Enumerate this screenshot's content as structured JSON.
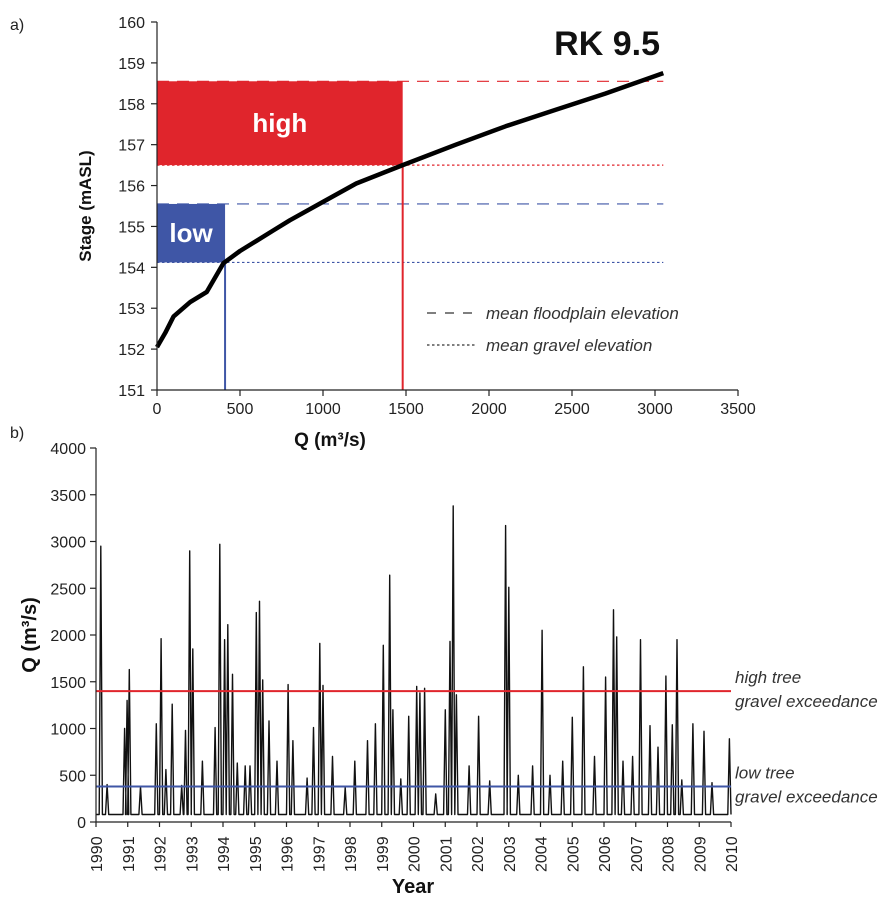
{
  "chart_data": [
    {
      "type": "line",
      "panel_label": "a)",
      "title": "RK 9.5",
      "xlabel": "Q (m³/s)",
      "ylabel": "Stage (mASL)",
      "xlim": [
        0,
        3500
      ],
      "ylim": [
        151,
        160
      ],
      "x_ticks": [
        0,
        500,
        1000,
        1500,
        2000,
        2500,
        3000,
        3500
      ],
      "y_ticks": [
        151,
        152,
        153,
        154,
        155,
        156,
        157,
        158,
        159,
        160
      ],
      "series": [
        {
          "values": [
            [
              0,
              152.05
            ],
            [
              50,
              152.4
            ],
            [
              100,
              152.8
            ],
            [
              200,
              153.15
            ],
            [
              300,
              153.4
            ],
            [
              400,
              154.1
            ],
            [
              500,
              154.4
            ],
            [
              600,
              154.65
            ],
            [
              700,
              154.9
            ],
            [
              800,
              155.15
            ],
            [
              1000,
              155.6
            ],
            [
              1200,
              156.05
            ],
            [
              1480,
              156.5
            ],
            [
              1800,
              157.0
            ],
            [
              2100,
              157.45
            ],
            [
              2400,
              157.85
            ],
            [
              2700,
              158.25
            ],
            [
              3050,
              158.75
            ]
          ]
        }
      ],
      "boxes": [
        {
          "label": "high",
          "color": "#e0252c",
          "x": [
            0,
            1480
          ],
          "y": [
            156.5,
            158.55
          ]
        },
        {
          "label": "low",
          "color": "#3f56a6",
          "x": [
            0,
            410
          ],
          "y": [
            154.12,
            155.55
          ]
        }
      ],
      "vertical_lines": [
        {
          "x": 410,
          "color": "#3f56a6"
        },
        {
          "x": 1480,
          "color": "#e0252c"
        }
      ],
      "reference_lines": [
        {
          "y": 158.55,
          "style": "dashed",
          "color": "#e0252c"
        },
        {
          "y": 156.5,
          "style": "dotted",
          "color": "#e0252c"
        },
        {
          "y": 155.55,
          "style": "dashed",
          "color": "#3f56a6"
        },
        {
          "y": 154.12,
          "style": "dotted",
          "color": "#3f56a6"
        }
      ],
      "legend": [
        {
          "label": "mean floodplain elevation",
          "style": "dashed"
        },
        {
          "label": "mean gravel elevation",
          "style": "dotted"
        }
      ],
      "legend_placement": "bottom-right",
      "grid": false
    },
    {
      "type": "line",
      "panel_label": "b)",
      "xlabel": "Year",
      "ylabel": "Q (m³/s)",
      "xlim": [
        1990,
        2010
      ],
      "ylim": [
        0,
        4000
      ],
      "y_ticks": [
        0,
        500,
        1000,
        1500,
        2000,
        2500,
        3000,
        3500,
        4000
      ],
      "x_tick_labels": [
        "1990",
        "1991",
        "1992",
        "1993",
        "1994",
        "1995",
        "1996",
        "1997",
        "1998",
        "1999",
        "2000",
        "2001",
        "2002",
        "2003",
        "2004",
        "2005",
        "2006",
        "2007",
        "2008",
        "2009",
        "2010"
      ],
      "baseflow": 80,
      "series": [
        {
          "values": [
            [
              1990.15,
              2950
            ],
            [
              1990.35,
              400
            ],
            [
              1990.9,
              1000
            ],
            [
              1990.98,
              1300
            ],
            [
              1991.05,
              1630
            ],
            [
              1991.4,
              380
            ],
            [
              1991.9,
              1050
            ],
            [
              1992.05,
              1960
            ],
            [
              1992.2,
              560
            ],
            [
              1992.4,
              1260
            ],
            [
              1992.7,
              390
            ],
            [
              1992.82,
              980
            ],
            [
              1992.95,
              2900
            ],
            [
              1993.05,
              1850
            ],
            [
              1993.35,
              650
            ],
            [
              1993.75,
              1010
            ],
            [
              1993.9,
              2970
            ],
            [
              1994.05,
              1950
            ],
            [
              1994.15,
              2110
            ],
            [
              1994.3,
              1580
            ],
            [
              1994.45,
              630
            ],
            [
              1994.7,
              600
            ],
            [
              1994.85,
              600
            ],
            [
              1995.05,
              2240
            ],
            [
              1995.15,
              2360
            ],
            [
              1995.25,
              1520
            ],
            [
              1995.45,
              1080
            ],
            [
              1995.7,
              650
            ],
            [
              1996.05,
              1470
            ],
            [
              1996.2,
              870
            ],
            [
              1996.65,
              470
            ],
            [
              1996.85,
              1010
            ],
            [
              1997.05,
              1910
            ],
            [
              1997.15,
              1460
            ],
            [
              1997.45,
              700
            ],
            [
              1997.85,
              370
            ],
            [
              1998.15,
              650
            ],
            [
              1998.55,
              870
            ],
            [
              1998.8,
              1050
            ],
            [
              1999.05,
              1890
            ],
            [
              1999.25,
              2640
            ],
            [
              1999.35,
              1200
            ],
            [
              1999.6,
              460
            ],
            [
              1999.85,
              1130
            ],
            [
              2000.1,
              1450
            ],
            [
              2000.2,
              1380
            ],
            [
              2000.35,
              1430
            ],
            [
              2000.7,
              300
            ],
            [
              2001.0,
              1200
            ],
            [
              2001.15,
              1930
            ],
            [
              2001.25,
              3380
            ],
            [
              2001.35,
              1360
            ],
            [
              2001.75,
              600
            ],
            [
              2002.05,
              1130
            ],
            [
              2002.4,
              440
            ],
            [
              2002.9,
              3170
            ],
            [
              2003.0,
              2510
            ],
            [
              2003.3,
              500
            ],
            [
              2003.75,
              600
            ],
            [
              2004.05,
              2050
            ],
            [
              2004.3,
              500
            ],
            [
              2004.7,
              650
            ],
            [
              2005.0,
              1120
            ],
            [
              2005.35,
              1660
            ],
            [
              2005.7,
              700
            ],
            [
              2006.05,
              1550
            ],
            [
              2006.3,
              2270
            ],
            [
              2006.4,
              1980
            ],
            [
              2006.6,
              650
            ],
            [
              2006.9,
              700
            ],
            [
              2007.15,
              1950
            ],
            [
              2007.45,
              1030
            ],
            [
              2007.7,
              800
            ],
            [
              2007.95,
              1560
            ],
            [
              2008.15,
              1040
            ],
            [
              2008.3,
              1950
            ],
            [
              2008.45,
              450
            ],
            [
              2008.8,
              1050
            ],
            [
              2009.15,
              970
            ],
            [
              2009.4,
              420
            ],
            [
              2009.95,
              890
            ]
          ]
        }
      ],
      "horizontal_lines": [
        {
          "y": 1400,
          "color": "#e0252c",
          "label_line1": "high tree",
          "label_line2": "gravel exceedance"
        },
        {
          "y": 380,
          "color": "#3f56a6",
          "label_line1": "low tree",
          "label_line2": "gravel exceedance"
        }
      ],
      "grid": false
    }
  ]
}
